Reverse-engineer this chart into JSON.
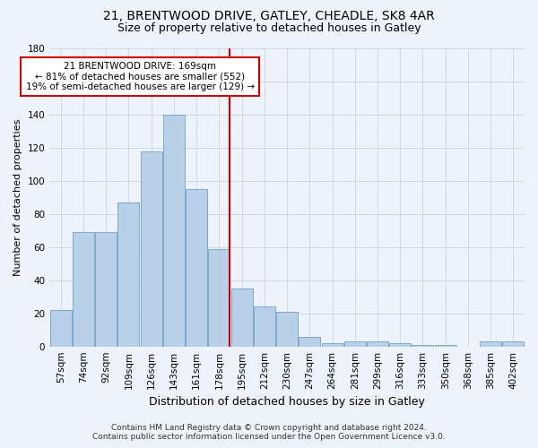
{
  "title1": "21, BRENTWOOD DRIVE, GATLEY, CHEADLE, SK8 4AR",
  "title2": "Size of property relative to detached houses in Gatley",
  "xlabel": "Distribution of detached houses by size in Gatley",
  "ylabel": "Number of detached properties",
  "categories": [
    "57sqm",
    "74sqm",
    "92sqm",
    "109sqm",
    "126sqm",
    "143sqm",
    "161sqm",
    "178sqm",
    "195sqm",
    "212sqm",
    "230sqm",
    "247sqm",
    "264sqm",
    "281sqm",
    "299sqm",
    "316sqm",
    "333sqm",
    "350sqm",
    "368sqm",
    "385sqm",
    "402sqm"
  ],
  "values": [
    22,
    69,
    69,
    87,
    118,
    140,
    95,
    59,
    35,
    24,
    21,
    6,
    2,
    3,
    3,
    2,
    1,
    1,
    0,
    3,
    3
  ],
  "bar_color": "#b8d0e8",
  "bar_edge_color": "#7aaaca",
  "grid_color": "#d0d8e8",
  "background_color": "#eef2fa",
  "vline_x_index": 7.45,
  "annotation_text_line1": "21 BRENTWOOD DRIVE: 169sqm",
  "annotation_text_line2": "← 81% of detached houses are smaller (552)",
  "annotation_text_line3": "19% of semi-detached houses are larger (129) →",
  "annotation_box_facecolor": "#ffffff",
  "annotation_box_edgecolor": "#cc0000",
  "vline_color": "#cc0000",
  "footer1": "Contains HM Land Registry data © Crown copyright and database right 2024.",
  "footer2": "Contains public sector information licensed under the Open Government Licence v3.0.",
  "ylim": [
    0,
    180
  ],
  "yticks": [
    0,
    20,
    40,
    60,
    80,
    100,
    120,
    140,
    160,
    180
  ],
  "title1_fontsize": 10,
  "title2_fontsize": 9,
  "xlabel_fontsize": 9,
  "ylabel_fontsize": 8,
  "tick_fontsize": 7.5,
  "ann_fontsize": 7.5,
  "footer_fontsize": 6.5
}
